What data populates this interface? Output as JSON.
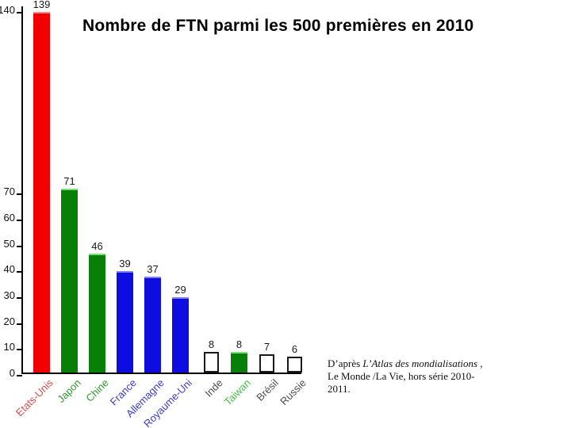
{
  "title": "Nombre de FTN parmi les 500 premières en 2010",
  "caption": {
    "prefix": "D’après ",
    "italic": "L’Atlas des mondialisations",
    "suffix": " ,",
    "line2": "Le Monde /La Vie, hors série 2010-",
    "line3": "2011."
  },
  "chart_data": {
    "type": "bar",
    "title": "Nombre de FTN parmi les 500 premières en 2010",
    "categories": [
      "Etats-Unis",
      "Japon",
      "Chine",
      "France",
      "Allemagne",
      "Royaume-Uni",
      "Inde",
      "Taiwan",
      "Brésil",
      "Russie"
    ],
    "values": [
      139,
      71,
      46,
      39,
      37,
      29,
      8,
      8,
      7,
      6
    ],
    "bar_colors": [
      "#f20000",
      "#088008",
      "#088008",
      "#0d0de0",
      "#0d0de0",
      "#0d0de0",
      "#ffffff",
      "#088008",
      "#ffffff",
      "#ffffff"
    ],
    "bar_highlight_colors": [
      "#ff8a8a",
      "#7be07b",
      "#7be07b",
      "#8080ff",
      "#8080ff",
      "#8080ff",
      null,
      "#7be07b",
      null,
      null
    ],
    "label_colors": [
      "#d94c4c",
      "#2d992d",
      "#2d992d",
      "#3a3acc",
      "#3a3acc",
      "#3a3acc",
      "#4d4d4d",
      "#44c144",
      "#4d4d4d",
      "#4d4d4d"
    ],
    "value_label_color": "#1a1a1a",
    "outline_color": "#1a1a1a",
    "axis_color": "#000000",
    "y_ticks": [
      0,
      10,
      20,
      30,
      40,
      50,
      60,
      70,
      140
    ],
    "ylim": [
      0,
      144
    ],
    "xlabel": "",
    "ylabel": "",
    "grid": false,
    "legend": false,
    "source": "D’après L’Atlas des mondialisations , Le Monde /La Vie, hors série 2010-2011."
  }
}
